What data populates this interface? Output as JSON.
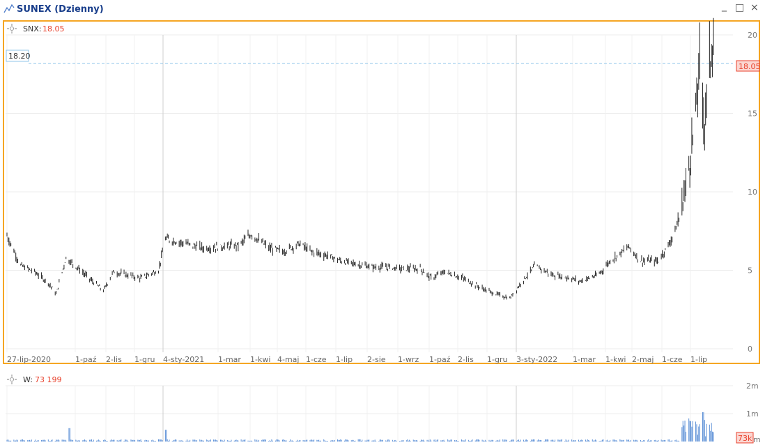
{
  "window": {
    "title": "SUNEX (Dzienny)",
    "minimize_glyph": "_",
    "maximize_glyph": "□",
    "close_glyph": "×"
  },
  "price_pane": {
    "indicator_label": "SNX:",
    "indicator_value": "18.05",
    "cursor_level_label": "18.20",
    "last_price_badge": "18.05",
    "y_tick_labels": [
      "20",
      "15",
      "10",
      "5",
      "0"
    ],
    "x_tick_labels": [
      "27-lip-2020",
      "1-paź",
      "2-lis",
      "1-gru",
      "4-sty-2021",
      "1-mar",
      "1-kwi",
      "4-maj",
      "1-cze",
      "1-lip",
      "2-sie",
      "1-wrz",
      "1-paź",
      "2-lis",
      "1-gru",
      "3-sty-2022",
      "1-mar",
      "1-kwi",
      "2-maj",
      "1-cze",
      "1-lip"
    ]
  },
  "volume_pane": {
    "indicator_label": "W:",
    "indicator_value": "73 199",
    "y_tick_labels": [
      "2m",
      "1m"
    ],
    "last_volume_badge": "73k",
    "bottom_tick": "m"
  },
  "colors": {
    "accent_frame": "#f5a623",
    "price_bars": "#222222",
    "volume_bars": "#5b8fd6",
    "highlight_value": "#e8412c",
    "cursor_line": "#8fc4e8",
    "title": "#1a3f8c"
  },
  "chart_data": [
    {
      "type": "ohlc",
      "title": "SUNEX (Dzienny)",
      "series_name": "SNX",
      "x_range": [
        "2020-07-27",
        "2022-07-15"
      ],
      "ylim": [
        0,
        20
      ],
      "last_value": 18.05,
      "cursor_level": 18.2,
      "grid": true,
      "points": [
        {
          "date": "2020-07-27",
          "close": 7.2
        },
        {
          "date": "2020-08-10",
          "close": 5.3
        },
        {
          "date": "2020-08-24",
          "close": 4.9
        },
        {
          "date": "2020-09-07",
          "close": 4.2
        },
        {
          "date": "2020-09-15",
          "close": 3.5
        },
        {
          "date": "2020-09-25",
          "close": 5.8
        },
        {
          "date": "2020-10-08",
          "close": 5.1
        },
        {
          "date": "2020-10-20",
          "close": 4.4
        },
        {
          "date": "2020-11-02",
          "close": 3.7
        },
        {
          "date": "2020-11-12",
          "close": 4.9
        },
        {
          "date": "2020-11-26",
          "close": 4.7
        },
        {
          "date": "2020-12-10",
          "close": 4.5
        },
        {
          "date": "2020-12-28",
          "close": 5.0
        },
        {
          "date": "2021-01-04",
          "close": 7.0
        },
        {
          "date": "2021-01-25",
          "close": 6.7
        },
        {
          "date": "2021-02-12",
          "close": 6.4
        },
        {
          "date": "2021-03-01",
          "close": 6.5
        },
        {
          "date": "2021-03-20",
          "close": 6.6
        },
        {
          "date": "2021-04-01",
          "close": 7.3
        },
        {
          "date": "2021-04-20",
          "close": 6.4
        },
        {
          "date": "2021-05-04",
          "close": 6.2
        },
        {
          "date": "2021-05-20",
          "close": 6.7
        },
        {
          "date": "2021-06-01",
          "close": 6.2
        },
        {
          "date": "2021-06-20",
          "close": 5.9
        },
        {
          "date": "2021-07-01",
          "close": 5.6
        },
        {
          "date": "2021-08-02",
          "close": 5.2
        },
        {
          "date": "2021-08-20",
          "close": 5.2
        },
        {
          "date": "2021-09-01",
          "close": 5.1
        },
        {
          "date": "2021-09-20",
          "close": 5.1
        },
        {
          "date": "2021-10-01",
          "close": 4.5
        },
        {
          "date": "2021-10-15",
          "close": 4.9
        },
        {
          "date": "2021-11-02",
          "close": 4.5
        },
        {
          "date": "2021-11-20",
          "close": 3.9
        },
        {
          "date": "2021-12-01",
          "close": 3.6
        },
        {
          "date": "2021-12-20",
          "close": 3.2
        },
        {
          "date": "2022-01-03",
          "close": 4.4
        },
        {
          "date": "2022-01-15",
          "close": 5.3
        },
        {
          "date": "2022-02-01",
          "close": 4.7
        },
        {
          "date": "2022-02-20",
          "close": 4.5
        },
        {
          "date": "2022-03-01",
          "close": 4.3
        },
        {
          "date": "2022-03-20",
          "close": 4.7
        },
        {
          "date": "2022-04-01",
          "close": 5.6
        },
        {
          "date": "2022-04-20",
          "close": 6.5
        },
        {
          "date": "2022-05-02",
          "close": 5.6
        },
        {
          "date": "2022-05-20",
          "close": 5.6
        },
        {
          "date": "2022-06-01",
          "close": 6.8
        },
        {
          "date": "2022-06-10",
          "close": 8.2
        },
        {
          "date": "2022-06-20",
          "close": 11.5
        },
        {
          "date": "2022-06-27",
          "close": 15.0
        },
        {
          "date": "2022-07-01",
          "close": 18.0
        },
        {
          "date": "2022-07-06",
          "close": 14.5
        },
        {
          "date": "2022-07-10",
          "close": 17.5
        },
        {
          "date": "2022-07-14",
          "close": 19.8
        },
        {
          "date": "2022-07-17",
          "close": 18.05
        }
      ]
    },
    {
      "type": "bar",
      "title": "",
      "series_name": "W",
      "ylabel": "",
      "ylim": [
        0,
        2000000
      ],
      "last_value": 73199
    }
  ]
}
